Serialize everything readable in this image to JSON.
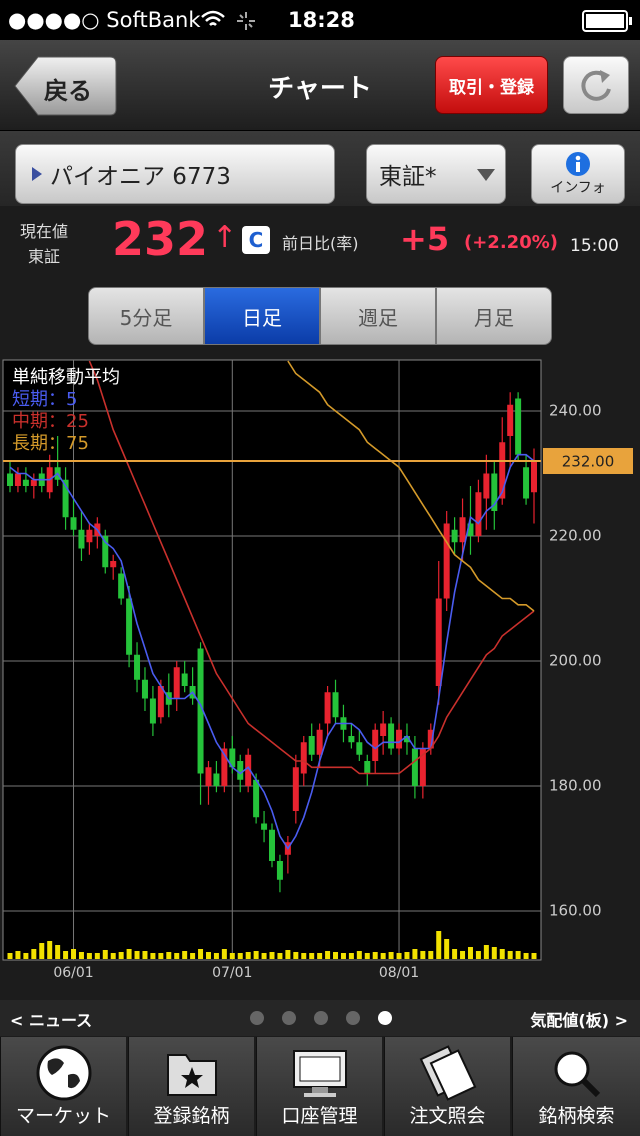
{
  "status_bar": {
    "carrier": "●●●●○ SoftBank",
    "time": "18:28"
  },
  "nav": {
    "back": "戻る",
    "title": "チャート",
    "trade_button": "取引・登録"
  },
  "stock": {
    "name": "パイオニア 6773",
    "market": "東証*",
    "info": "インフォ"
  },
  "quote": {
    "label": "現在値",
    "exchange": "東証",
    "price": 232,
    "arrow": "↑",
    "flag": "C",
    "change_label": "前日比(率)",
    "change": "+5",
    "change_rate": "(+2.20%)",
    "time": "15:00"
  },
  "tabs": [
    "5分足",
    "日足",
    "週足",
    "月足"
  ],
  "selected_tab": 1,
  "chart_data": {
    "type": "candlestick",
    "title": "単純移動平均",
    "categories": [
      null,
      null,
      null,
      null,
      null,
      null,
      null,
      null,
      "06/01",
      null,
      null,
      null,
      null,
      null,
      null,
      null,
      null,
      null,
      null,
      null,
      null,
      null,
      null,
      null,
      null,
      null,
      null,
      null,
      "07/01",
      null,
      null,
      null,
      null,
      null,
      null,
      null,
      null,
      null,
      null,
      null,
      null,
      null,
      null,
      null,
      null,
      null,
      null,
      null,
      null,
      "08/01",
      null,
      null,
      null,
      null,
      null,
      null,
      null,
      null,
      null,
      null,
      null,
      null,
      null,
      null,
      null,
      null,
      null
    ],
    "candles": {
      "open": [
        230,
        228,
        229,
        228,
        230,
        227,
        231,
        229,
        223,
        221,
        219,
        220,
        220,
        215,
        214,
        210,
        201,
        197,
        194,
        191,
        195,
        194,
        198,
        196,
        202,
        180,
        182,
        180,
        186,
        184,
        180,
        181,
        174,
        173,
        168,
        169,
        176,
        182,
        188,
        185,
        190,
        195,
        191,
        188,
        187,
        184,
        184,
        188,
        190,
        186,
        188,
        186,
        180,
        186,
        196,
        210,
        221,
        219,
        222,
        220,
        226,
        230,
        226,
        236,
        242,
        231,
        227
      ],
      "high": [
        232,
        231,
        231,
        230,
        231,
        233,
        236,
        231,
        226,
        224,
        222,
        223,
        221,
        217,
        215,
        212,
        203,
        199,
        196,
        197,
        198,
        200,
        200,
        199,
        203,
        184,
        184,
        187,
        188,
        185,
        186,
        182,
        176,
        174,
        169,
        172,
        185,
        188,
        190,
        190,
        196,
        197,
        193,
        190,
        189,
        185,
        190,
        192,
        191,
        190,
        190,
        188,
        187,
        190,
        216,
        224,
        223,
        226,
        228,
        229,
        233,
        232,
        239,
        243,
        243,
        233,
        234
      ],
      "low": [
        227,
        227,
        227,
        226,
        227,
        226,
        228,
        221,
        220,
        216,
        217,
        218,
        214,
        213,
        209,
        199,
        195,
        192,
        188,
        190,
        191,
        192,
        195,
        193,
        177,
        177,
        179,
        179,
        182,
        179,
        179,
        174,
        171,
        167,
        163,
        166,
        174,
        180,
        184,
        183,
        188,
        190,
        187,
        186,
        184,
        180,
        182,
        185,
        185,
        185,
        185,
        178,
        178,
        185,
        193,
        208,
        217,
        216,
        217,
        219,
        221,
        221,
        225,
        231,
        232,
        225,
        222
      ],
      "close": [
        228,
        230,
        228,
        229,
        228,
        231,
        229,
        223,
        221,
        218,
        221,
        222,
        215,
        216,
        210,
        201,
        197,
        194,
        190,
        196,
        193,
        199,
        196,
        194,
        182,
        183,
        180,
        186,
        183,
        181,
        185,
        175,
        173,
        168,
        165,
        171,
        183,
        187,
        185,
        189,
        195,
        191,
        189,
        187,
        185,
        182,
        189,
        190,
        186,
        189,
        187,
        180,
        186,
        189,
        210,
        222,
        219,
        223,
        220,
        227,
        230,
        224,
        235,
        241,
        233,
        226,
        232
      ],
      "up_color": "#e8232f",
      "down_color": "#25c33a"
    },
    "ma": [
      {
        "name": "短期：5",
        "color": "#4a5cf0",
        "values": [
          231,
          230,
          230,
          229,
          229,
          229,
          230,
          228,
          226,
          224,
          222,
          221,
          219,
          218,
          216,
          211,
          206,
          202,
          198,
          196,
          194,
          194,
          194,
          195,
          193,
          190,
          187,
          185,
          183,
          182,
          183,
          181,
          179,
          176,
          172,
          170,
          172,
          175,
          179,
          184,
          188,
          190,
          190,
          190,
          189,
          187,
          186,
          187,
          187,
          187,
          188,
          186,
          186,
          186,
          194,
          203,
          211,
          217,
          223,
          222,
          224,
          225,
          227,
          231,
          233,
          233,
          232
        ]
      },
      {
        "name": "中期：25",
        "color": "#c9302c",
        "values": [
          null,
          null,
          null,
          null,
          null,
          null,
          null,
          null,
          null,
          null,
          248,
          245,
          241,
          237,
          234,
          231,
          228,
          225,
          222,
          219,
          216,
          213,
          210,
          207,
          204,
          201,
          198,
          196,
          194,
          192,
          190,
          189,
          188,
          187,
          186,
          185,
          184,
          184,
          183,
          183,
          183,
          183,
          183,
          183,
          182,
          182,
          182,
          182,
          182,
          182,
          183,
          184,
          185,
          186,
          188,
          191,
          193,
          195,
          197,
          199,
          201,
          202,
          204,
          205,
          206,
          207,
          208
        ]
      },
      {
        "name": "長期：75",
        "color": "#d49a2a",
        "values": [
          null,
          null,
          null,
          null,
          null,
          null,
          null,
          null,
          null,
          null,
          null,
          null,
          null,
          null,
          null,
          null,
          null,
          null,
          null,
          null,
          null,
          null,
          null,
          null,
          null,
          null,
          null,
          null,
          null,
          null,
          null,
          null,
          null,
          null,
          null,
          248,
          246,
          245,
          244,
          243,
          241,
          240,
          239,
          238,
          237,
          235,
          234,
          233,
          232,
          231,
          229,
          227,
          225,
          223,
          221,
          219,
          217,
          216,
          215,
          213,
          212,
          211,
          210,
          210,
          209,
          209,
          208
        ]
      }
    ],
    "volume": {
      "color": "#f2e100",
      "ylim": [
        0,
        50
      ],
      "values": [
        6,
        8,
        6,
        10,
        16,
        18,
        14,
        8,
        10,
        7,
        6,
        6,
        9,
        6,
        7,
        10,
        8,
        8,
        6,
        6,
        7,
        6,
        8,
        6,
        10,
        7,
        6,
        10,
        6,
        6,
        7,
        8,
        6,
        7,
        6,
        9,
        7,
        6,
        6,
        6,
        8,
        7,
        6,
        6,
        8,
        6,
        7,
        6,
        7,
        6,
        7,
        10,
        8,
        8,
        28,
        20,
        10,
        8,
        12,
        8,
        14,
        12,
        10,
        8,
        8,
        6,
        6
      ]
    },
    "ylim": [
      152.16,
      248.16
    ],
    "yticks": [
      {
        "value": 160,
        "label": "160.00"
      },
      {
        "value": 180,
        "label": "180.00"
      },
      {
        "value": 200,
        "label": "200.00"
      },
      {
        "value": 220,
        "label": "220.00"
      },
      {
        "value": 240,
        "label": "240.00"
      }
    ],
    "last_price": {
      "value": 232,
      "label": "232.00",
      "color": "#e8a33c"
    },
    "grid": true
  },
  "pager": {
    "left": "< ニュース",
    "right": "気配値(板) >",
    "pages": 5,
    "current": 4
  },
  "tab_bar": [
    "マーケット",
    "登録銘柄",
    "口座管理",
    "注文照会",
    "銘柄検索"
  ]
}
